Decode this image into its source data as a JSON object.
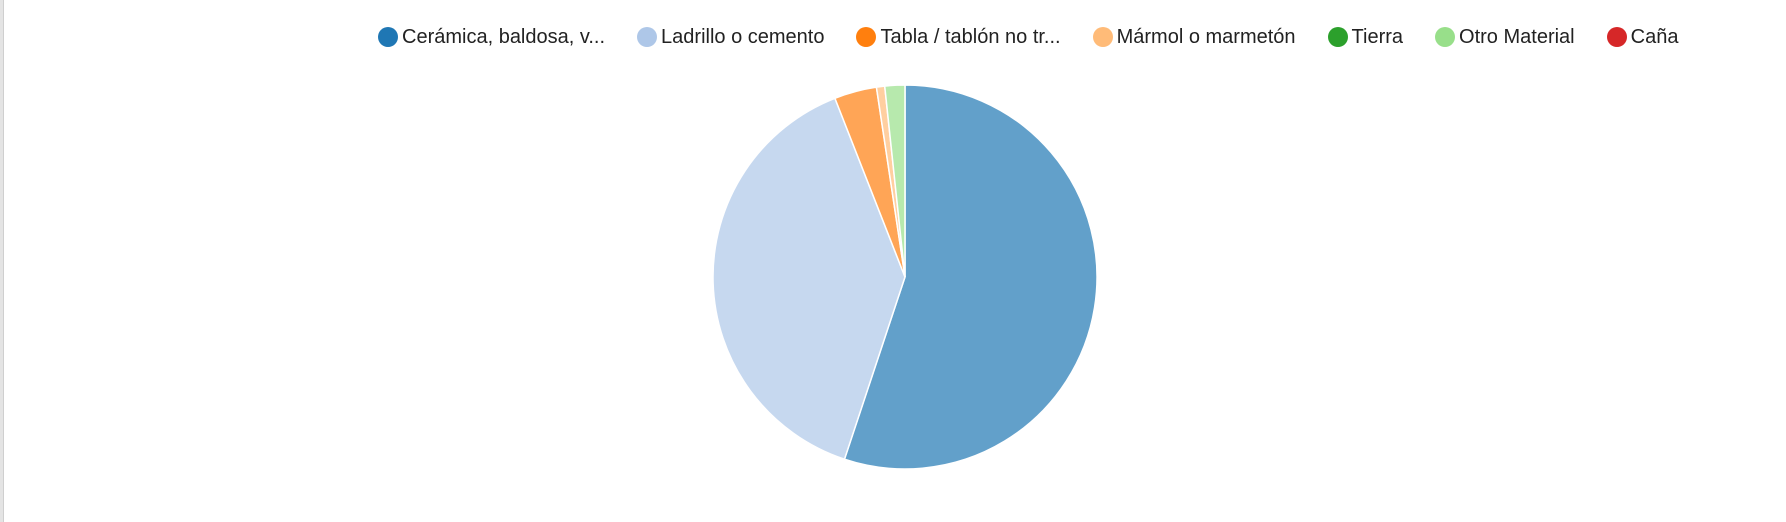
{
  "chart_data": {
    "type": "pie",
    "legend_position": "top",
    "title": "",
    "slices": [
      {
        "label": "Cerámica, baldosa, v...",
        "value": 55.6,
        "color": "#1f77b4"
      },
      {
        "label": "Ladrillo o cemento",
        "value": 39.3,
        "color": "#aec7e8"
      },
      {
        "label": "Tabla / tablón no tr...",
        "value": 3.6,
        "color": "#ff7f0e"
      },
      {
        "label": "Mármol o marmetón",
        "value": 0.7,
        "color": "#ffbb78"
      },
      {
        "label": "Tierra",
        "value": 0.0,
        "color": "#2ca02c"
      },
      {
        "label": "Otro Material",
        "value": 1.7,
        "color": "#98df8a"
      },
      {
        "label": "Caña",
        "value": 0.0,
        "color": "#d62728"
      }
    ]
  }
}
